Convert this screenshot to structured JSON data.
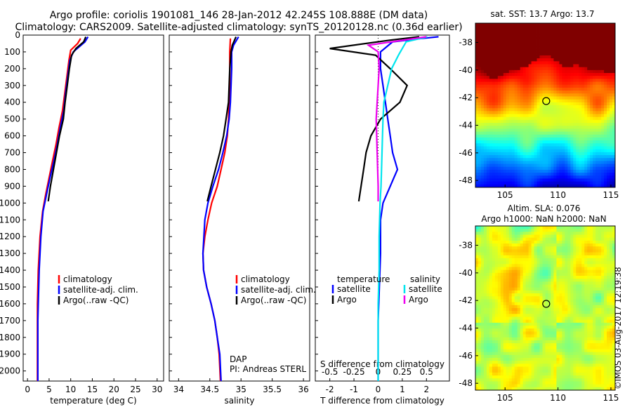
{
  "header": {
    "line1": "Argo profile: coriolis 1901081_146 28-Jan-2012 42.245S 108.888E (DM data)",
    "line2": "Climatology: CARS2009. Satellite-adjusted climatology: synTS_20120128.nc (0.36d earlier)"
  },
  "depth_ticks": [
    0,
    100,
    200,
    300,
    400,
    500,
    600,
    700,
    800,
    900,
    1000,
    1100,
    1200,
    1300,
    1400,
    1500,
    1600,
    1700,
    1800,
    1900,
    2000
  ],
  "legend": {
    "climatology": "climatology",
    "satellite_adj": "satellite-adj. clim.",
    "argo": "Argo(..raw -QC)",
    "temperature": "temperature",
    "salinity": "salinity",
    "satellite": "satellite",
    "argo_short": "Argo"
  },
  "annotations": {
    "dap": "DAP",
    "pi": "PI: Andreas STERL"
  },
  "colors": {
    "climatology": "#ff0000",
    "satellite": "#0000ff",
    "argo": "#000000",
    "sal_satellite": "#00e5ee",
    "sal_argo": "#ee00ee"
  },
  "credit": "©IMOS 03-Aug-2017 12:19:38",
  "chart_data": [
    {
      "type": "line",
      "xlabel": "temperature (deg C)",
      "ylabel": "",
      "xlim": [
        -1,
        31.5
      ],
      "ylim": [
        2060,
        0
      ],
      "xticks": [
        0,
        5,
        10,
        15,
        20,
        25,
        30
      ],
      "series": [
        {
          "name": "climatology",
          "color": "#ff0000",
          "x": [
            12.3,
            11.6,
            10.0,
            9.6,
            9.1,
            8.6,
            8.1,
            7.3,
            6.6,
            5.8,
            5.0,
            4.2,
            3.5,
            2.9,
            2.5,
            2.3,
            2.3,
            2.3,
            2.3,
            2.3,
            2.3
          ],
          "y": [
            20,
            50,
            90,
            150,
            250,
            350,
            450,
            550,
            650,
            750,
            850,
            950,
            1050,
            1200,
            1400,
            1600,
            1700,
            1800,
            1900,
            2000,
            2060
          ]
        },
        {
          "name": "satellite-adj. clim.",
          "color": "#0000ff",
          "x": [
            14.0,
            13.3,
            10.6,
            9.8,
            9.3,
            8.8,
            8.4,
            7.6,
            6.9,
            6.1,
            5.2,
            4.4,
            3.6,
            3.1,
            2.7,
            2.5,
            2.4,
            2.4,
            2.4,
            2.4,
            2.4
          ],
          "y": [
            10,
            40,
            100,
            150,
            250,
            350,
            450,
            550,
            650,
            750,
            850,
            950,
            1050,
            1200,
            1400,
            1600,
            1700,
            1800,
            1900,
            2000,
            2060
          ]
        },
        {
          "name": "Argo(..raw -QC)",
          "color": "#000000",
          "x": [
            13.5,
            13.0,
            11.2,
            10.2,
            9.7,
            9.2,
            8.7,
            8.3,
            7.4,
            6.7,
            6.0,
            5.3,
            4.8
          ],
          "y": [
            10,
            40,
            80,
            120,
            200,
            300,
            400,
            500,
            600,
            700,
            800,
            900,
            990
          ]
        }
      ]
    },
    {
      "type": "line",
      "xlabel": "salinity",
      "ylabel": "",
      "xlim": [
        33.85,
        36.1
      ],
      "ylim": [
        2060,
        0
      ],
      "xticks": [
        34,
        34.5,
        35,
        35.5,
        36
      ],
      "series": [
        {
          "name": "climatology",
          "color": "#ff0000",
          "x": [
            34.83,
            34.82,
            34.82,
            34.82,
            34.81,
            34.8,
            34.78,
            34.74,
            34.68,
            34.62,
            34.53,
            34.47,
            34.42,
            34.39,
            34.4,
            34.45,
            34.52,
            34.58,
            34.62,
            34.65,
            34.67
          ],
          "y": [
            20,
            100,
            200,
            300,
            400,
            500,
            600,
            700,
            800,
            900,
            1000,
            1100,
            1200,
            1300,
            1400,
            1500,
            1600,
            1700,
            1800,
            1900,
            2060
          ]
        },
        {
          "name": "satellite-adj. clim.",
          "color": "#0000ff",
          "x": [
            34.96,
            34.88,
            34.85,
            34.85,
            34.84,
            34.83,
            34.81,
            34.77,
            34.71,
            34.64,
            34.55,
            34.47,
            34.42,
            34.39,
            34.4,
            34.45,
            34.52,
            34.58,
            34.62,
            34.66,
            34.68
          ],
          "y": [
            10,
            60,
            100,
            200,
            300,
            400,
            500,
            600,
            700,
            800,
            900,
            1000,
            1100,
            1300,
            1400,
            1500,
            1600,
            1700,
            1800,
            1900,
            2060
          ]
        },
        {
          "name": "Argo(..raw -QC)",
          "color": "#000000",
          "x": [
            34.92,
            34.86,
            34.84,
            34.82,
            34.81,
            34.8,
            34.76,
            34.72,
            34.66,
            34.59,
            34.52,
            34.46
          ],
          "y": [
            10,
            60,
            100,
            200,
            300,
            400,
            500,
            600,
            700,
            800,
            900,
            990
          ]
        }
      ]
    },
    {
      "type": "line",
      "xlabel": "T difference from climatology",
      "x2label": "S difference from climatology",
      "ylabel": "",
      "xlim": [
        -2.6,
        2.95
      ],
      "ylim": [
        2060,
        0
      ],
      "xticks": [
        -2,
        -1,
        0,
        1,
        2
      ],
      "x2lim": [
        -0.65,
        0.7375
      ],
      "x2ticks": [
        -0.5,
        -0.25,
        0,
        0.25,
        0.5
      ],
      "series": [
        {
          "name": "temperature satellite",
          "color": "#0000ff",
          "x": [
            2.5,
            1.8,
            0.6,
            0.1,
            0.1,
            0.2,
            0.3,
            0.4,
            0.5,
            0.6,
            0.8,
            0.5,
            0.2,
            0.1,
            0.1,
            0.05,
            0,
            0,
            0,
            0
          ],
          "y": [
            10,
            20,
            40,
            100,
            200,
            300,
            400,
            500,
            600,
            700,
            800,
            900,
            1000,
            1100,
            1300,
            1500,
            1700,
            1900,
            2000,
            2060
          ]
        },
        {
          "name": "temperature Argo",
          "color": "#000000",
          "x": [
            1.7,
            0.5,
            -2.0,
            -0.1,
            0.5,
            1.2,
            0.9,
            0.1,
            -0.3,
            -0.5,
            -0.6,
            -0.8
          ],
          "y": [
            10,
            30,
            80,
            120,
            200,
            300,
            400,
            500,
            600,
            700,
            800,
            990
          ]
        },
        {
          "name": "salinity satellite",
          "color": "#00e5ee",
          "x": [
            0.51,
            0.29,
            0.25,
            0.21,
            0.14,
            0.1,
            0.06,
            0.05,
            0.04,
            0.03,
            0.02,
            0.01,
            0.01,
            0.0,
            0.0,
            0.0
          ],
          "y": [
            10,
            40,
            80,
            120,
            200,
            300,
            400,
            500,
            700,
            900,
            1000,
            1200,
            1400,
            1600,
            1800,
            2060
          ]
        },
        {
          "name": "salinity Argo",
          "color": "#ee00ee",
          "x": [
            0.5,
            -0.1,
            0.0,
            0.01,
            0.0,
            -0.01,
            -0.02,
            -0.01,
            0.0,
            0.0
          ],
          "y": [
            10,
            60,
            100,
            200,
            300,
            400,
            500,
            700,
            900,
            990
          ]
        }
      ]
    },
    {
      "type": "heatmap",
      "title": "sat. SST: 13.7 Argo: 13.7",
      "xlim": [
        102.2,
        115.4
      ],
      "ylim": [
        -48.5,
        -36.6
      ],
      "xticks": [
        105,
        110,
        115
      ],
      "yticks": [
        -38,
        -40,
        -42,
        -44,
        -46,
        -48
      ],
      "marker": {
        "x": 108.888,
        "y": -42.245
      }
    },
    {
      "type": "heatmap",
      "title": "Altim. SLA: 0.076",
      "subtitle": "Argo h1000: NaN h2000: NaN",
      "xlim": [
        102.2,
        115.4
      ],
      "ylim": [
        -48.5,
        -36.6
      ],
      "xticks": [
        105,
        110,
        115
      ],
      "yticks": [
        -38,
        -40,
        -42,
        -44,
        -46,
        -48
      ],
      "marker": {
        "x": 108.888,
        "y": -42.245
      }
    }
  ]
}
